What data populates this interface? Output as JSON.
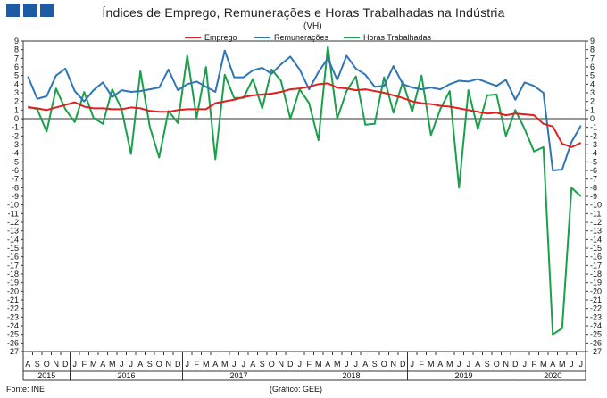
{
  "header": {
    "title": "Índices de Emprego, Remunerações e Horas Trabalhadas na Indústria",
    "unit": "(VH)",
    "brand_color": "#1f5aa6"
  },
  "legend": [
    {
      "label": "Emprego",
      "color": "#e02020"
    },
    {
      "label": "Remunerações",
      "color": "#2e75b6"
    },
    {
      "label": "Horas Trabalhadas",
      "color": "#1aa04a"
    }
  ],
  "footer": {
    "source": "Fonte:  INE",
    "credit": "(Gráfico: GEE)"
  },
  "chart_data": {
    "type": "line",
    "ylim": [
      -27,
      9
    ],
    "y_ticks": [
      9,
      8,
      7,
      6,
      5,
      4,
      3,
      2,
      1,
      0,
      -1,
      -2,
      -3,
      -4,
      -5,
      -6,
      -7,
      -8,
      -9,
      -10,
      -11,
      -12,
      -13,
      -14,
      -15,
      -16,
      -17,
      -18,
      -19,
      -20,
      -21,
      -22,
      -23,
      -24,
      -25,
      -26,
      -27
    ],
    "grid": false,
    "legend_position": "top",
    "x": [
      "A",
      "S",
      "O",
      "N",
      "D",
      "J",
      "F",
      "M",
      "A",
      "M",
      "J",
      "J",
      "A",
      "S",
      "O",
      "N",
      "D",
      "J",
      "F",
      "M",
      "A",
      "M",
      "J",
      "J",
      "A",
      "S",
      "O",
      "N",
      "D",
      "J",
      "F",
      "M",
      "A",
      "M",
      "J",
      "J",
      "A",
      "S",
      "O",
      "N",
      "D",
      "J",
      "F",
      "M",
      "A",
      "M",
      "J",
      "J",
      "A",
      "S",
      "O",
      "N",
      "D",
      "J",
      "F",
      "M",
      "A",
      "M",
      "J",
      "J"
    ],
    "years": [
      {
        "label": "2015",
        "start": 0,
        "end": 4
      },
      {
        "label": "2016",
        "start": 5,
        "end": 16
      },
      {
        "label": "2017",
        "start": 17,
        "end": 28
      },
      {
        "label": "2018",
        "start": 29,
        "end": 40
      },
      {
        "label": "2019",
        "start": 41,
        "end": 52
      },
      {
        "label": "2020",
        "start": 53,
        "end": 59
      }
    ],
    "series": [
      {
        "name": "Emprego",
        "color": "#e02020",
        "values": [
          1.3,
          1.2,
          1.0,
          1.3,
          1.6,
          1.9,
          1.4,
          1.2,
          1.2,
          1.1,
          1.1,
          1.3,
          1.2,
          0.9,
          0.8,
          0.8,
          1.0,
          1.1,
          1.1,
          1.1,
          1.8,
          2.0,
          2.2,
          2.5,
          2.7,
          2.8,
          2.9,
          3.1,
          3.4,
          3.5,
          3.7,
          4.0,
          4.1,
          3.6,
          3.5,
          3.3,
          3.4,
          3.2,
          3.0,
          2.7,
          2.4,
          2.0,
          1.8,
          1.7,
          1.5,
          1.4,
          1.2,
          1.0,
          0.8,
          0.6,
          0.7,
          0.4,
          0.6,
          0.5,
          0.4,
          -0.6,
          -0.9,
          -2.9,
          -3.3,
          -2.8
        ]
      },
      {
        "name": "Remunerações",
        "color": "#2e75b6",
        "values": [
          4.9,
          2.3,
          2.6,
          5.0,
          5.8,
          3.2,
          2.0,
          3.3,
          4.2,
          2.5,
          3.3,
          3.1,
          3.2,
          3.4,
          3.6,
          5.7,
          3.3,
          4.0,
          4.3,
          3.7,
          3.1,
          7.9,
          4.8,
          4.8,
          5.6,
          5.9,
          5.2,
          6.3,
          7.2,
          5.7,
          3.4,
          5.4,
          7.0,
          4.5,
          7.3,
          5.8,
          5.1,
          3.7,
          3.8,
          6.1,
          4.0,
          3.6,
          3.4,
          3.6,
          3.4,
          4.0,
          4.4,
          4.3,
          4.6,
          4.2,
          3.8,
          4.5,
          2.2,
          4.2,
          3.8,
          3.0,
          -6.0,
          -5.9,
          -2.7,
          -0.8
        ]
      },
      {
        "name": "Horas Trabalhadas",
        "color": "#1aa04a",
        "values": [
          1.4,
          1.1,
          -1.5,
          3.5,
          1.1,
          -0.4,
          3.1,
          0.1,
          -0.6,
          3.4,
          1.1,
          -4.1,
          5.5,
          -0.9,
          -4.5,
          0.9,
          -0.5,
          7.3,
          0.1,
          6.0,
          -4.7,
          5.1,
          2.4,
          2.4,
          4.6,
          1.2,
          5.7,
          4.4,
          0.0,
          3.4,
          1.8,
          -2.5,
          8.4,
          0.0,
          3.2,
          4.9,
          -0.7,
          -0.6,
          4.8,
          0.7,
          4.3,
          0.8,
          5.0,
          -1.9,
          1.1,
          3.2,
          -8.0,
          3.3,
          -1.2,
          2.7,
          2.8,
          -2.0,
          1.0,
          -1.2,
          -3.8,
          -3.3,
          -25.0,
          -24.3,
          -8.0,
          -9.0
        ]
      }
    ]
  }
}
